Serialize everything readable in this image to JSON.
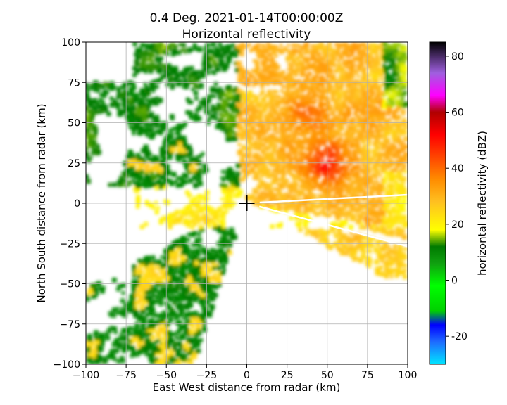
{
  "chart_data": {
    "type": "heatmap",
    "title": "0.4 Deg. 2021-01-14T00:00:00Z",
    "subtitle": "Horizontal reflectivity",
    "xlabel": "East West distance from radar (km)",
    "ylabel": "North South distance from radar (km)",
    "xlim": [
      -100,
      100
    ],
    "ylim": [
      -100,
      100
    ],
    "xticks": [
      -100,
      -75,
      -50,
      -25,
      0,
      25,
      50,
      75,
      100
    ],
    "yticks": [
      -100,
      -75,
      -50,
      -25,
      0,
      25,
      50,
      75,
      100
    ],
    "grid": true,
    "radar_marker": {
      "x": 0,
      "y": 0,
      "symbol": "plus"
    },
    "colorbar": {
      "label": "horizontal reflectivity (dBZ)",
      "range": [
        -30,
        85
      ],
      "ticks": [
        -20,
        0,
        20,
        40,
        60,
        80
      ],
      "colormap": [
        [
          -30,
          "#00e5ff"
        ],
        [
          -22,
          "#1e6bff"
        ],
        [
          -16,
          "#0000ff"
        ],
        [
          -11,
          "#00d000"
        ],
        [
          -2,
          "#00ff00"
        ],
        [
          6,
          "#10a010"
        ],
        [
          12,
          "#007a00"
        ],
        [
          18,
          "#ffff00"
        ],
        [
          28,
          "#ffc020"
        ],
        [
          36,
          "#ff8c00"
        ],
        [
          44,
          "#ff4500"
        ],
        [
          52,
          "#ff0000"
        ],
        [
          60,
          "#b00000"
        ],
        [
          66,
          "#ff00ff"
        ],
        [
          74,
          "#9f5fdf"
        ],
        [
          85,
          "#000000"
        ]
      ]
    },
    "echo_regions": [
      {
        "region": "north-east",
        "dBZ_range": [
          20,
          45
        ],
        "peak_dBZ": 45,
        "peak_location": [
          50,
          22
        ]
      },
      {
        "region": "north-west",
        "dBZ_range": [
          0,
          25
        ]
      },
      {
        "region": "south-west",
        "dBZ_range": [
          0,
          25
        ]
      },
      {
        "region": "east",
        "dBZ_range": [
          15,
          35
        ]
      }
    ]
  }
}
